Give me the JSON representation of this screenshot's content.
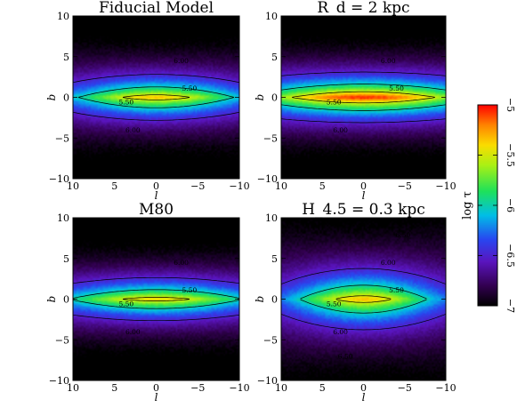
{
  "chart_data": {
    "type": "heatmap",
    "colorbar": {
      "label": "log τ",
      "range": [
        -7,
        -5
      ],
      "ticks": [
        "−5",
        "−5.5",
        "−6",
        "−6.5",
        "−7"
      ],
      "colormap": "rainbow (black → purple → blue → cyan → green → yellow → orange → red)"
    },
    "panels": [
      {
        "title": "Fiducial Model",
        "xlabel": "l",
        "ylabel": "b",
        "xlim": [
          10,
          -10
        ],
        "ylim": [
          -10,
          10
        ],
        "xticks": [
          "10",
          "5",
          "0",
          "−5",
          "−10"
        ],
        "yticks": [
          "10",
          "5",
          "0",
          "−5",
          "−10"
        ],
        "peak_log_tau": -5.3,
        "central_width_l": 12,
        "scale_height_b": 2.7,
        "contour_levels": [
          -6.5,
          -6.0,
          -5.5,
          -5.3
        ],
        "contour_labels": [
          "6.50",
          "6.00",
          "5.50",
          "5.50",
          "6.00",
          "6.50"
        ]
      },
      {
        "title": "R_d = 2 kpc",
        "xlabel": "l",
        "ylabel": "b",
        "xlim": [
          10,
          -10
        ],
        "ylim": [
          -10,
          10
        ],
        "xticks": [
          "10",
          "5",
          "0",
          "−5",
          "−10"
        ],
        "yticks": [
          "10",
          "5",
          "0",
          "−5",
          "−10"
        ],
        "peak_log_tau": -5.0,
        "central_width_l": 16,
        "scale_height_b": 2.6,
        "contour_levels": [
          -6.5,
          -6.0,
          -5.5
        ],
        "contour_labels": [
          "6.50",
          "6.00",
          "5.50",
          "5.50",
          "6.00",
          "6.50"
        ]
      },
      {
        "title": "M80",
        "xlabel": "l",
        "ylabel": "b",
        "xlim": [
          10,
          -10
        ],
        "ylim": [
          -10,
          10
        ],
        "xticks": [
          "10",
          "5",
          "0",
          "−5",
          "−10"
        ],
        "yticks": [
          "10",
          "5",
          "0",
          "−5",
          "−10"
        ],
        "peak_log_tau": -5.35,
        "central_width_l": 14,
        "scale_height_b": 2.6,
        "contour_levels": [
          -6.5,
          -6.0,
          -5.5
        ],
        "contour_labels": [
          "6.50",
          "6.00",
          "5.50",
          "5.50",
          "6.00",
          "6.50"
        ]
      },
      {
        "title": "H_4.5 = 0.3 kpc",
        "xlabel": "l",
        "ylabel": "b",
        "xlim": [
          10,
          -10
        ],
        "ylim": [
          -10,
          10
        ],
        "xticks": [
          "10",
          "5",
          "0",
          "−5",
          "−10"
        ],
        "yticks": [
          "10",
          "5",
          "0",
          "−5",
          "−10"
        ],
        "peak_log_tau": -5.3,
        "central_width_l": 10,
        "scale_height_b": 3.6,
        "contour_levels": [
          -6.5,
          -6.0,
          -5.5
        ],
        "contour_labels": [
          "6.50",
          "6.00",
          "5.50",
          "5.50",
          "6.00",
          "6.50"
        ]
      }
    ]
  }
}
